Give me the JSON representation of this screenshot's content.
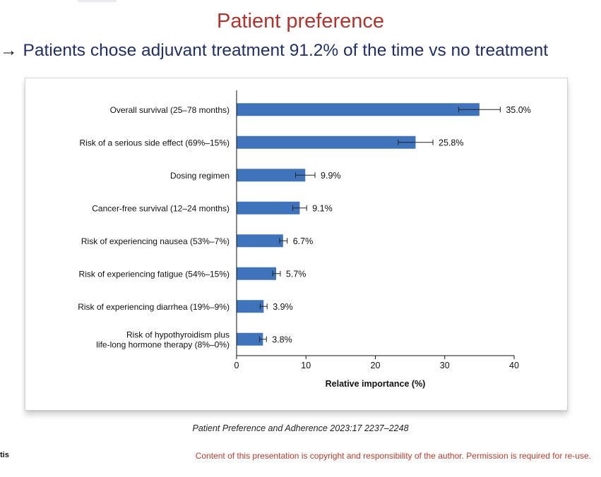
{
  "slide": {
    "title": "Patient preference",
    "subtitle_arrow": "→",
    "subtitle_text": "Patients chose adjuvant treatment 91.2% of the time vs no treatment",
    "citation": "Patient Preference and Adherence 2023:17 2237–2248",
    "left_fragment": "tis",
    "copyright": "Content of this presentation is copyright and responsibility of the author. Permission is required for re-use."
  },
  "colors": {
    "title": "#b5322d",
    "subtitle": "#1f2f6b",
    "bar": "#3f74bd",
    "copyright": "#c0392b"
  },
  "chart_data": {
    "type": "bar",
    "orientation": "horizontal",
    "categories": [
      [
        "Overall survival (25–78 months)"
      ],
      [
        "Risk of a serious side effect (69%–15%)"
      ],
      [
        "Dosing regimen"
      ],
      [
        "Cancer-free survival (12–24 months)"
      ],
      [
        "Risk of experiencing nausea (53%–7%)"
      ],
      [
        "Risk of experiencing fatigue (54%–15%)"
      ],
      [
        "Risk of experiencing diarrhea (19%–9%)"
      ],
      [
        "Risk of hypothyroidism plus",
        "life-long hormone therapy (8%–0%)"
      ]
    ],
    "values": [
      35.0,
      25.8,
      9.9,
      9.1,
      6.7,
      5.7,
      3.9,
      3.8
    ],
    "value_labels": [
      "35.0%",
      "25.8%",
      "9.9%",
      "9.1%",
      "6.7%",
      "5.7%",
      "3.9%",
      "3.8%"
    ],
    "error_low": [
      32.0,
      23.3,
      8.5,
      8.1,
      6.2,
      5.2,
      3.4,
      3.3
    ],
    "error_high": [
      38.0,
      28.3,
      11.3,
      10.1,
      7.3,
      6.3,
      4.4,
      4.3
    ],
    "xlabel": "Relative importance (%)",
    "xlim": [
      0,
      40
    ],
    "xticks": [
      0,
      10,
      20,
      30,
      40
    ],
    "grid": false,
    "legend": "none"
  }
}
